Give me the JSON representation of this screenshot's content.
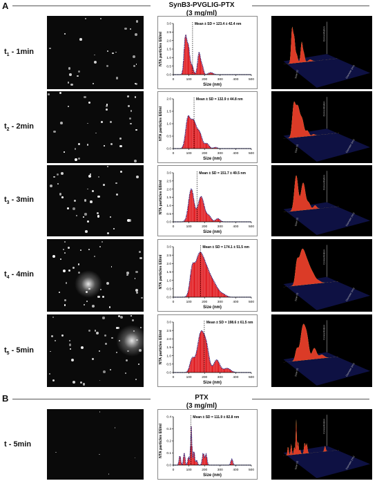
{
  "panel_a": {
    "letter": "A",
    "title_line1": "SynB3-PVGLIG-PTX",
    "title_line2": "(3 mg/ml)"
  },
  "panel_b": {
    "letter": "B",
    "title_line1": "PTX",
    "title_line2": "(3 mg/ml)"
  },
  "rows": [
    {
      "label_main": "t",
      "label_sub": "1",
      "label_rest": " - 1min"
    },
    {
      "label_main": "t",
      "label_sub": "2",
      "label_rest": " - 2min"
    },
    {
      "label_main": "t",
      "label_sub": "3",
      "label_rest": " - 3min"
    },
    {
      "label_main": "t",
      "label_sub": "4",
      "label_rest": " - 4min"
    },
    {
      "label_main": "t",
      "label_sub": "5",
      "label_rest": " - 5min"
    },
    {
      "label_main": "t - 5min",
      "label_sub": "",
      "label_rest": ""
    }
  ],
  "surface_axis_labels": {
    "concentration": "Concentration",
    "diameter": "Diameter (nm)",
    "time": "Time (s)"
  },
  "colors": {
    "bar_fill": "#e0161b",
    "outline": "#2a2f8c",
    "rule": "#555555"
  },
  "chart_data": [
    {
      "type": "bar",
      "xlabel": "Size (nm)",
      "ylabel": "NTA particles E6/ml",
      "annotation": "Mean ± SD = 123.4 ± 42.4 nm",
      "mean": 123.4,
      "xlim": [
        0,
        500
      ],
      "xticks": [
        0,
        100,
        200,
        300,
        400,
        500
      ],
      "ylim": [
        0,
        3.0
      ],
      "yticks": [
        0.0,
        0.5,
        1.0,
        1.5,
        2.0,
        2.5,
        3.0
      ],
      "ytick_labels": [
        "0.0",
        "0.5",
        "1.0",
        "1.5",
        "2.0",
        "2.5",
        "3.0"
      ],
      "peaks": [
        [
          78,
          2.25,
          9
        ],
        [
          97,
          1.45,
          8
        ],
        [
          118,
          0.55,
          10
        ],
        [
          165,
          1.3,
          9
        ],
        [
          185,
          0.5,
          8
        ],
        [
          240,
          0.12,
          15
        ]
      ]
    },
    {
      "type": "bar",
      "xlabel": "Size (nm)",
      "ylabel": "NTA particles E6/ml",
      "annotation": "Mean ± SD = 132.9 ± 44.8 nm",
      "mean": 132.9,
      "xlim": [
        0,
        500
      ],
      "xticks": [
        0,
        100,
        200,
        300,
        400,
        500
      ],
      "ylim": [
        0,
        2.0
      ],
      "yticks": [
        0.0,
        0.5,
        1.0,
        1.5,
        2.0
      ],
      "ytick_labels": [
        "0.0",
        "0.5",
        "1.0",
        "1.5",
        "2.0"
      ],
      "peaks": [
        [
          92,
          1.05,
          14
        ],
        [
          128,
          1.12,
          20
        ],
        [
          170,
          0.55,
          16
        ],
        [
          215,
          0.2,
          14
        ],
        [
          270,
          0.05,
          12
        ]
      ]
    },
    {
      "type": "bar",
      "xlabel": "Size (nm)",
      "ylabel": "NTA particles E6/ml",
      "annotation": "Mean ± SD = 151.7 ± 49.5 nm",
      "mean": 151.7,
      "xlim": [
        0,
        500
      ],
      "xticks": [
        0,
        100,
        200,
        300,
        400,
        500
      ],
      "ylim": [
        0,
        3.0
      ],
      "yticks": [
        0.0,
        0.5,
        1.0,
        1.5,
        2.0,
        2.5,
        3.0
      ],
      "ytick_labels": [
        "0.0",
        "0.5",
        "1.0",
        "1.5",
        "2.0",
        "2.5",
        "3.0"
      ],
      "peaks": [
        [
          115,
          2.0,
          17
        ],
        [
          178,
          1.55,
          20
        ],
        [
          228,
          0.35,
          15
        ],
        [
          285,
          0.2,
          14
        ]
      ]
    },
    {
      "type": "bar",
      "xlabel": "Size (nm)",
      "ylabel": "NTA particles E6/ml",
      "annotation": "Mean ± SD = 174.1 ± 51.5 nm",
      "mean": 174.1,
      "xlim": [
        0,
        500
      ],
      "xticks": [
        0,
        100,
        200,
        300,
        400,
        500
      ],
      "ylim": [
        0,
        3.0
      ],
      "yticks": [
        0.0,
        0.5,
        1.0,
        1.5,
        2.0,
        2.5,
        3.0
      ],
      "ytick_labels": [
        "0.0",
        "0.5",
        "1.0",
        "1.5",
        "2.0",
        "2.5",
        "3.0"
      ],
      "peaks": [
        [
          120,
          1.25,
          14
        ],
        [
          165,
          2.35,
          28
        ],
        [
          215,
          1.3,
          28
        ],
        [
          265,
          0.6,
          26
        ],
        [
          320,
          0.15,
          20
        ]
      ]
    },
    {
      "type": "bar",
      "xlabel": "Size (nm)",
      "ylabel": "NTA particles E6/ml",
      "annotation": "Mean ± SD = 198.6 ± 61.5 nm",
      "mean": 198.6,
      "xlim": [
        0,
        500
      ],
      "xticks": [
        0,
        100,
        200,
        300,
        400,
        500
      ],
      "ylim": [
        0,
        3.0
      ],
      "yticks": [
        0.0,
        0.5,
        1.0,
        1.5,
        2.0,
        2.5,
        3.0
      ],
      "ytick_labels": [
        "0.0",
        "0.5",
        "1.0",
        "1.5",
        "2.0",
        "2.5",
        "3.0"
      ],
      "peaks": [
        [
          120,
          0.75,
          14
        ],
        [
          178,
          2.4,
          24
        ],
        [
          215,
          1.0,
          16
        ],
        [
          278,
          0.75,
          20
        ],
        [
          345,
          0.25,
          22
        ]
      ]
    },
    {
      "type": "bar",
      "xlabel": "Size (nm)",
      "ylabel": "NTA particles E6/ml",
      "annotation": "Mean ± SD = 111.9 ± 82.8 nm",
      "mean": 111.9,
      "xlim": [
        0,
        500
      ],
      "xticks": [
        0,
        100,
        200,
        300,
        400,
        500
      ],
      "ylim": [
        0,
        0.4
      ],
      "yticks": [
        0.0,
        0.1,
        0.2,
        0.3,
        0.4
      ],
      "ytick_labels": [
        "0.0",
        "0.1",
        "0.2",
        "0.3",
        "0.4"
      ],
      "peaks": [
        [
          42,
          0.08,
          5
        ],
        [
          70,
          0.1,
          5
        ],
        [
          98,
          0.07,
          5
        ],
        [
          115,
          0.32,
          4
        ],
        [
          132,
          0.12,
          5
        ],
        [
          150,
          0.04,
          5
        ],
        [
          192,
          0.1,
          6
        ],
        [
          210,
          0.09,
          6
        ],
        [
          375,
          0.05,
          6
        ]
      ]
    }
  ]
}
